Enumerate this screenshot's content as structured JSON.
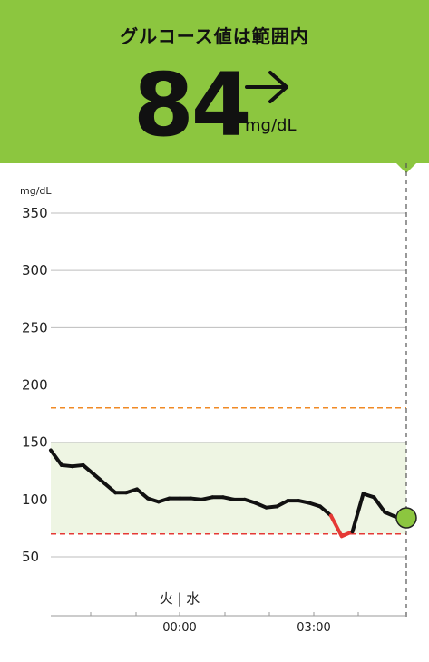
{
  "header": {
    "status_title": "グルコース値は範囲内",
    "reading_value": "84",
    "reading_unit": "mg/dL",
    "trend_icon": "arrow-right-icon",
    "background_color": "#8cc63f"
  },
  "chart_data": {
    "type": "line",
    "ylabel": "mg/dL",
    "ylim": [
      25,
      360
    ],
    "yticks": [
      50,
      100,
      150,
      200,
      250,
      300,
      350
    ],
    "xtick_labels": [
      "00:00",
      "03:00"
    ],
    "day_label": "火 | 水",
    "target_range": [
      70,
      150
    ],
    "high_threshold": 180,
    "low_threshold": 70,
    "colors": {
      "line": "#111111",
      "low_segment": "#e53935",
      "target_fill": "#eef5e3",
      "high_line": "#f08a24",
      "low_line": "#e53935",
      "current_point": "#8cc63f",
      "grid": "#bdbdbd"
    },
    "series": [
      {
        "values": [
          143,
          130,
          129,
          130,
          122,
          114,
          106,
          106,
          109,
          101,
          98,
          101,
          101,
          101,
          100,
          102,
          102,
          100,
          100,
          97,
          93,
          94,
          99,
          99,
          97,
          94,
          86,
          68,
          72,
          105,
          102,
          89,
          85,
          84
        ]
      }
    ],
    "current_value": 84
  }
}
